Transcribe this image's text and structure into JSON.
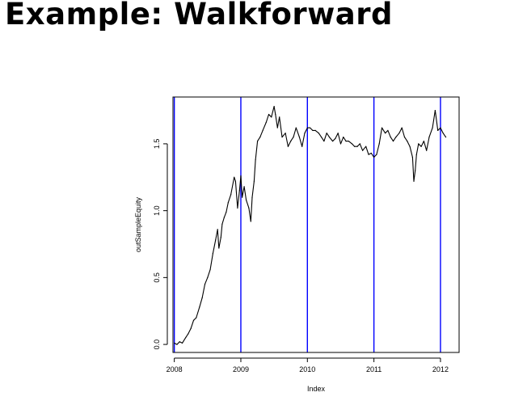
{
  "slide": {
    "title": "Example: Walkforward"
  },
  "chart_data": {
    "type": "line",
    "title": "",
    "xlabel": "Index",
    "ylabel": "outSampleEquity",
    "xlim": [
      2007.98,
      2012.28
    ],
    "ylim": [
      -0.06,
      1.85
    ],
    "x_ticks": [
      {
        "value": 2008,
        "label": "2008"
      },
      {
        "value": 2009,
        "label": "2009"
      },
      {
        "value": 2010,
        "label": "2010"
      },
      {
        "value": 2011,
        "label": "2011"
      },
      {
        "value": 2012,
        "label": "2012"
      }
    ],
    "y_ticks": [
      {
        "value": 0.0,
        "label": "0.0"
      },
      {
        "value": 0.5,
        "label": "0.5"
      },
      {
        "value": 1.0,
        "label": "1.0"
      },
      {
        "value": 1.5,
        "label": "1.5"
      }
    ],
    "vertical_lines": [
      2008,
      2009,
      2010,
      2011,
      2012
    ],
    "vertical_line_color": "#0000ff",
    "line_color": "#000000",
    "grid": false,
    "series": [
      {
        "x": [
          2008.0,
          2008.04,
          2008.08,
          2008.12,
          2008.17,
          2008.21,
          2008.25,
          2008.29,
          2008.33,
          2008.38,
          2008.42,
          2008.46,
          2008.5,
          2008.54,
          2008.58,
          2008.62,
          2008.65,
          2008.67,
          2008.7,
          2008.72,
          2008.75,
          2008.78,
          2008.81,
          2008.85,
          2008.9,
          2008.92,
          2008.95,
          2008.98,
          2009.0,
          2009.02,
          2009.05,
          2009.08,
          2009.12,
          2009.15,
          2009.17,
          2009.2,
          2009.22,
          2009.25,
          2009.29,
          2009.33,
          2009.38,
          2009.42,
          2009.46,
          2009.5,
          2009.52,
          2009.55,
          2009.58,
          2009.62,
          2009.67,
          2009.71,
          2009.75,
          2009.79,
          2009.83,
          2009.88,
          2009.92,
          2009.96,
          2010.0,
          2010.04,
          2010.08,
          2010.12,
          2010.17,
          2010.21,
          2010.25,
          2010.29,
          2010.33,
          2010.38,
          2010.42,
          2010.46,
          2010.5,
          2010.54,
          2010.58,
          2010.62,
          2010.67,
          2010.71,
          2010.75,
          2010.79,
          2010.83,
          2010.88,
          2010.92,
          2010.96,
          2011.0,
          2011.04,
          2011.08,
          2011.12,
          2011.17,
          2011.21,
          2011.25,
          2011.29,
          2011.33,
          2011.38,
          2011.42,
          2011.46,
          2011.5,
          2011.54,
          2011.58,
          2011.6,
          2011.62,
          2011.64,
          2011.67,
          2011.71,
          2011.75,
          2011.79,
          2011.83,
          2011.88,
          2011.92,
          2011.96,
          2012.0,
          2012.04,
          2012.08
        ],
        "y": [
          0.01,
          0.0,
          0.02,
          0.01,
          0.05,
          0.08,
          0.12,
          0.18,
          0.2,
          0.28,
          0.35,
          0.45,
          0.5,
          0.56,
          0.68,
          0.78,
          0.86,
          0.72,
          0.8,
          0.9,
          0.95,
          0.99,
          1.06,
          1.12,
          1.25,
          1.22,
          1.02,
          1.15,
          1.26,
          1.1,
          1.18,
          1.08,
          1.02,
          0.92,
          1.1,
          1.22,
          1.38,
          1.52,
          1.55,
          1.6,
          1.66,
          1.72,
          1.7,
          1.78,
          1.72,
          1.62,
          1.7,
          1.55,
          1.58,
          1.48,
          1.52,
          1.55,
          1.62,
          1.55,
          1.48,
          1.58,
          1.62,
          1.62,
          1.6,
          1.6,
          1.58,
          1.55,
          1.52,
          1.58,
          1.55,
          1.52,
          1.54,
          1.58,
          1.5,
          1.55,
          1.52,
          1.52,
          1.5,
          1.48,
          1.48,
          1.5,
          1.45,
          1.48,
          1.42,
          1.43,
          1.4,
          1.42,
          1.5,
          1.62,
          1.58,
          1.6,
          1.55,
          1.52,
          1.55,
          1.58,
          1.62,
          1.55,
          1.52,
          1.48,
          1.4,
          1.22,
          1.3,
          1.42,
          1.5,
          1.48,
          1.52,
          1.45,
          1.55,
          1.62,
          1.75,
          1.6,
          1.62,
          1.58,
          1.55
        ]
      }
    ]
  }
}
